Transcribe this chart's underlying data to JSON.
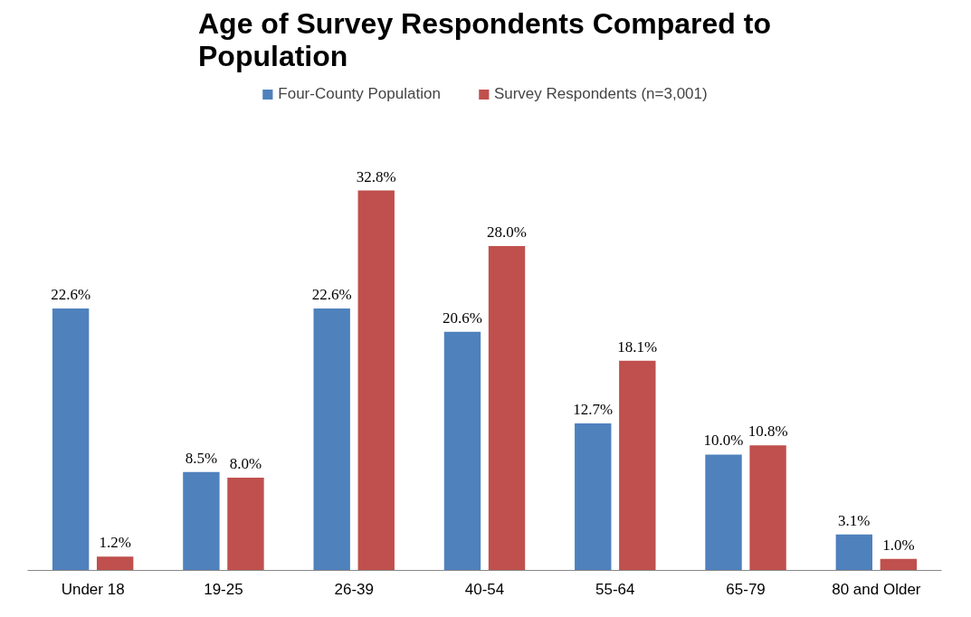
{
  "chart_data": {
    "type": "bar",
    "title": "Age of Survey Respondents Compared to Population",
    "categories": [
      "Under 18",
      "19-25",
      "26-39",
      "40-54",
      "55-64",
      "65-79",
      "80 and Older"
    ],
    "series": [
      {
        "name": "Four-County Population",
        "color": "#4f81bd",
        "values": [
          22.6,
          8.5,
          22.6,
          20.6,
          12.7,
          10.0,
          3.1
        ],
        "value_labels": [
          "22.6%",
          "8.5%",
          "22.6%",
          "20.6%",
          "12.7%",
          "10.0%",
          "3.1%"
        ]
      },
      {
        "name": "Survey Respondents (n=3,001)",
        "color": "#c0504d",
        "values": [
          1.2,
          8.0,
          32.8,
          28.0,
          18.1,
          10.8,
          1.0
        ],
        "value_labels": [
          "1.2%",
          "8.0%",
          "32.8%",
          "28.0%",
          "18.1%",
          "10.8%",
          "1.0%"
        ]
      }
    ],
    "legend": "top",
    "grid": false
  }
}
